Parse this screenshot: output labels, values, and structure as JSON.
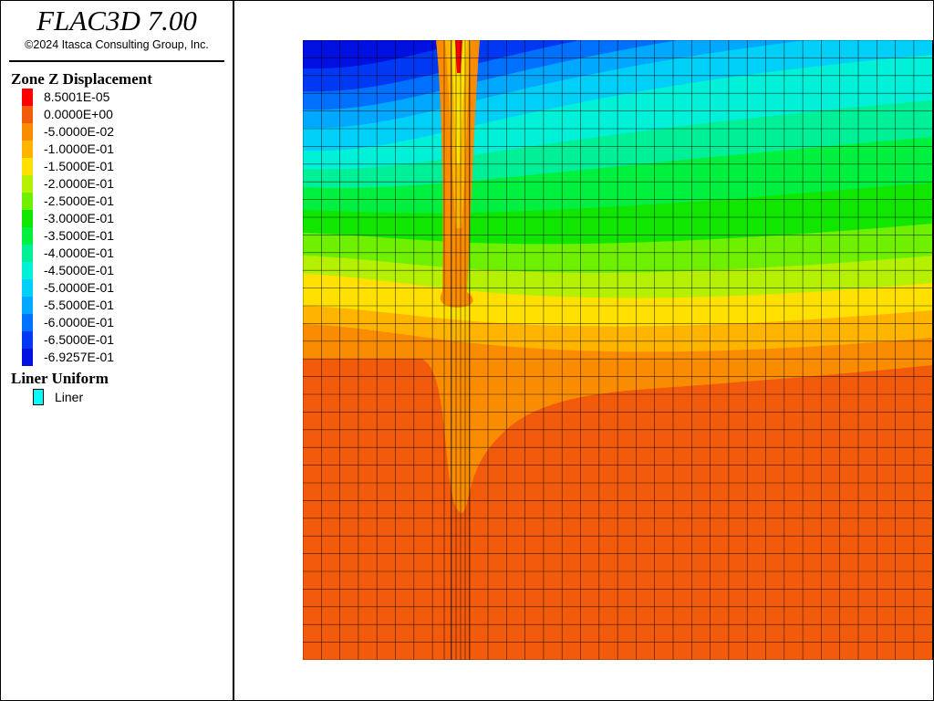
{
  "header": {
    "title": "FLAC3D 7.00",
    "copyright": "©2024 Itasca Consulting Group, Inc."
  },
  "legend": {
    "title": "Zone Z Displacement",
    "items": [
      {
        "label": "8.5001E-05",
        "color": "#ff0000"
      },
      {
        "label": "0.0000E+00",
        "color": "#f25a0c"
      },
      {
        "label": "-5.0000E-02",
        "color": "#f98c00"
      },
      {
        "label": "-1.0000E-01",
        "color": "#ffb400"
      },
      {
        "label": "-1.5000E-01",
        "color": "#ffe000"
      },
      {
        "label": "-2.0000E-01",
        "color": "#b4f000"
      },
      {
        "label": "-2.5000E-01",
        "color": "#6ef000"
      },
      {
        "label": "-3.0000E-01",
        "color": "#10e600"
      },
      {
        "label": "-3.5000E-01",
        "color": "#00f040"
      },
      {
        "label": "-4.0000E-01",
        "color": "#00f098"
      },
      {
        "label": "-4.5000E-01",
        "color": "#00f0d8"
      },
      {
        "label": "-5.0000E-01",
        "color": "#00cff8"
      },
      {
        "label": "-5.5000E-01",
        "color": "#00a8ff"
      },
      {
        "label": "-6.0000E-01",
        "color": "#0070ff"
      },
      {
        "label": "-6.5000E-01",
        "color": "#0038f4"
      },
      {
        "label": "-6.9257E-01",
        "color": "#0010e0"
      }
    ]
  },
  "liner_legend": {
    "title": "Liner Uniform",
    "items": [
      {
        "label": "Liner",
        "color": "#00ffff"
      }
    ]
  }
}
